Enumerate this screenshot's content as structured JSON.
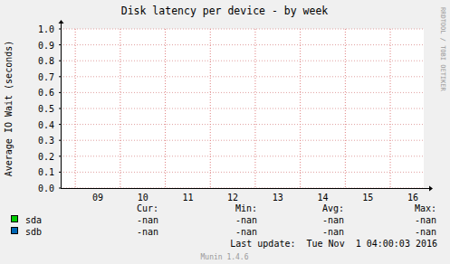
{
  "chart_data": {
    "type": "line",
    "title": "Disk latency per device - by week",
    "y_label": "Average IO Wait (seconds)",
    "categories": [
      "09",
      "10",
      "11",
      "12",
      "13",
      "14",
      "15",
      "16"
    ],
    "series": [
      {
        "name": "sda",
        "color": "#00cc00",
        "values": [
          null,
          null,
          null,
          null,
          null,
          null,
          null,
          null
        ],
        "cur": "-nan",
        "min": "-nan",
        "avg": "-nan",
        "max": "-nan"
      },
      {
        "name": "sdb",
        "color": "#0066b3",
        "values": [
          null,
          null,
          null,
          null,
          null,
          null,
          null,
          null
        ],
        "cur": "-nan",
        "min": "-nan",
        "avg": "-nan",
        "max": "-nan"
      }
    ],
    "stat_labels": [
      "Cur:",
      "Min:",
      "Avg:",
      "Max:"
    ],
    "ylim": [
      0,
      1
    ],
    "yticks": [
      {
        "value": 0,
        "label": "0.0"
      },
      {
        "value": 0.1,
        "label": "0.1"
      },
      {
        "value": 0.2,
        "label": "0.2"
      },
      {
        "value": 0.3,
        "label": "0.3"
      },
      {
        "value": 0.4,
        "label": "0.4"
      },
      {
        "value": 0.5,
        "label": "0.5"
      },
      {
        "value": 0.6,
        "label": "0.6"
      },
      {
        "value": 0.7,
        "label": "0.7"
      },
      {
        "value": 0.8,
        "label": "0.8"
      },
      {
        "value": 0.9,
        "label": "0.9"
      },
      {
        "value": 1,
        "label": "1.0"
      }
    ],
    "grid": true,
    "last_update": "Last update:  Tue Nov  1 04:00:03 2016",
    "footer": "Munin 1.4.6",
    "watermark": "RRDTOOL / TOBI OETIKER"
  }
}
